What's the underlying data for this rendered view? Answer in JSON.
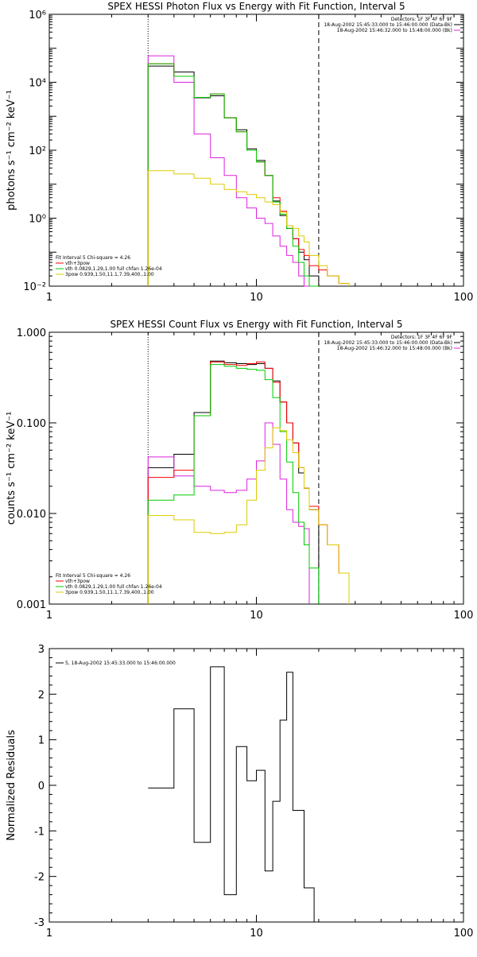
{
  "chart_data": [
    {
      "type": "line",
      "title": "SPEX HESSI Photon Flux vs Energy with Fit Function, Interval 5",
      "xlabel": "",
      "ylabel": "photons s⁻¹ cm⁻² keV⁻¹",
      "xscale": "log",
      "yscale": "log",
      "xlim": [
        1,
        100
      ],
      "ylim": [
        0.01,
        1000000
      ],
      "x_tick_labels": [
        "1",
        "10",
        "100"
      ],
      "y_tick_labels": [
        "10⁻²",
        "10⁰",
        "10²",
        "10⁴",
        "10⁶"
      ],
      "legend_topright": [
        "Detectors: 1F 3F 4F 6F 9F",
        "18-Aug-2002 15:45:33.000 to 15:46:00.000 (Data-Bk)",
        "18-Aug-2002 15:46:32.000 to 15:48:00.000 (Bk)"
      ],
      "legend_bottomleft": [
        "Fit Interval 5   Chi-square = 4.26",
        "vth+3pow",
        "vth 0.0829,1.29,1.00  full chfan 1.26e-04",
        "3pow 0.939,1.50,11.1,7.39,400.,1.00"
      ],
      "markers": [
        {
          "x": 3,
          "style": "dotted"
        },
        {
          "x": 20,
          "style": "dashed"
        }
      ],
      "bin_edges": [
        3,
        4,
        5,
        6,
        7,
        8,
        9,
        10,
        11,
        12,
        13,
        14,
        15,
        16,
        17,
        18,
        20,
        22,
        25,
        28
      ],
      "series": [
        {
          "name": "Data-Bk",
          "color": "#000000",
          "values": [
            30000,
            20000,
            3500,
            4000,
            900,
            400,
            110,
            50,
            18,
            3.2,
            1.2,
            0.5,
            0.25,
            0.1,
            0.06,
            0.02,
            null,
            null,
            null
          ]
        },
        {
          "name": "Bk",
          "color": "#dd22dd",
          "values": [
            60000,
            10000,
            300,
            60,
            18,
            4,
            2,
            1,
            0.7,
            0.3,
            0.15,
            0.08,
            0.05,
            0.02,
            0.01,
            null,
            null,
            null,
            null
          ]
        },
        {
          "name": "vth+3pow",
          "color": "#ff0000",
          "values": [
            35000,
            15000,
            3600,
            4500,
            900,
            350,
            100,
            45,
            18,
            4,
            1.6,
            0.6,
            0.25,
            0.12,
            0.08,
            0.04,
            0.03,
            0.02,
            0.012
          ]
        },
        {
          "name": "vth",
          "color": "#00cc00",
          "values": [
            35000,
            15000,
            3600,
            4500,
            900,
            350,
            100,
            45,
            18,
            3,
            1.3,
            0.5,
            0.15,
            0.05,
            0.02,
            0.01,
            null,
            null,
            null
          ]
        },
        {
          "name": "3pow",
          "color": "#ddcc00",
          "values": [
            25,
            20,
            15,
            10,
            7,
            6,
            5,
            4,
            3,
            2.5,
            1.5,
            0.6,
            0.5,
            0.3,
            0.2,
            0.08,
            0.04,
            0.02,
            0.012
          ]
        }
      ]
    },
    {
      "type": "line",
      "title": "SPEX HESSI Count Flux vs Energy with Fit Function, Interval 5",
      "xlabel": "",
      "ylabel": "counts s⁻¹ cm⁻² keV⁻¹",
      "xscale": "log",
      "yscale": "log",
      "xlim": [
        1,
        100
      ],
      "ylim": [
        0.001,
        1
      ],
      "x_tick_labels": [
        "1",
        "10",
        "100"
      ],
      "y_tick_labels": [
        "0.001",
        "0.010",
        "0.100",
        "1.000"
      ],
      "legend_topright": [
        "Detectors: 1F 3F 4F 6F 9F",
        "18-Aug-2002 15:45:33.000 to 15:46:00.000 (Data-Bk)",
        "18-Aug-2002 15:46:32.000 to 15:48:00.000 (Bk)"
      ],
      "legend_bottomleft": [
        "Fit Interval 5   Chi-square = 4.26",
        "vth+3pow",
        "vth 0.0829,1.29,1.00  full chfan 1.26e-04",
        "3pow 0.939,1.50,11.1,7.39,400.,1.00"
      ],
      "markers": [
        {
          "x": 3,
          "style": "dotted"
        },
        {
          "x": 20,
          "style": "dashed"
        }
      ],
      "bin_edges": [
        3,
        4,
        5,
        6,
        7,
        8,
        9,
        10,
        11,
        12,
        13,
        14,
        15,
        16,
        17,
        18,
        20,
        22,
        25,
        28
      ],
      "series": [
        {
          "name": "Data-Bk",
          "color": "#000000",
          "values": [
            0.032,
            0.045,
            0.13,
            0.48,
            0.46,
            0.45,
            0.44,
            0.45,
            0.4,
            0.29,
            0.17,
            0.1,
            0.06,
            0.028,
            0.019,
            0.011,
            null,
            null,
            null
          ]
        },
        {
          "name": "Bk",
          "color": "#dd22dd",
          "values": [
            0.042,
            0.026,
            0.02,
            0.018,
            0.017,
            0.018,
            0.024,
            0.038,
            0.1,
            0.058,
            0.024,
            0.011,
            0.008,
            0.0072,
            0.0068,
            null,
            null,
            null,
            null
          ]
        },
        {
          "name": "vth+3pow",
          "color": "#ff0000",
          "values": [
            0.025,
            0.03,
            0.12,
            0.47,
            0.44,
            0.43,
            0.45,
            0.47,
            0.4,
            0.28,
            0.17,
            0.1,
            0.06,
            0.032,
            0.019,
            0.012,
            0.0075,
            0.0045,
            0.0022
          ]
        },
        {
          "name": "vth",
          "color": "#00cc00",
          "values": [
            0.014,
            0.016,
            0.12,
            0.44,
            0.42,
            0.4,
            0.39,
            0.38,
            0.3,
            0.19,
            0.08,
            0.037,
            0.017,
            0.008,
            0.0045,
            0.0025,
            null,
            null,
            null
          ]
        },
        {
          "name": "3pow",
          "color": "#ddcc00",
          "values": [
            0.0095,
            0.0085,
            0.0062,
            0.006,
            0.0062,
            0.0075,
            0.014,
            0.03,
            0.053,
            0.088,
            0.082,
            0.065,
            0.047,
            0.032,
            0.019,
            0.011,
            0.0075,
            0.0045,
            0.0022
          ]
        }
      ]
    },
    {
      "type": "line",
      "title": "",
      "xlabel": "",
      "ylabel": "Normalized Residuals",
      "xscale": "log",
      "yscale": "linear",
      "xlim": [
        1,
        100
      ],
      "ylim": [
        -3,
        3
      ],
      "x_tick_labels": [
        "1",
        "10",
        "100"
      ],
      "y_tick_labels": [
        "-3",
        "-2",
        "-1",
        "0",
        "1",
        "2",
        "3"
      ],
      "legend_topleft": [
        "5, 18-Aug-2002 15:45:33.000 to 15:46:00.000"
      ],
      "bin_edges": [
        3,
        3.5,
        4,
        4.5,
        5,
        5.5,
        6,
        6.5,
        7,
        7.5,
        8,
        8.5,
        9,
        9.5,
        10,
        11,
        12,
        13,
        14,
        15,
        16,
        17,
        18,
        19,
        20
      ],
      "series": [
        {
          "name": "",
          "color": "#000000",
          "values": [
            -0.06,
            -0.06,
            1.68,
            1.68,
            -1.25,
            -1.25,
            2.6,
            2.6,
            -2.4,
            -2.4,
            0.85,
            0.85,
            0.1,
            0.1,
            0.33,
            -1.88,
            -0.35,
            1.43,
            2.48,
            -0.55,
            -0.55,
            -2.25,
            -2.25,
            -3.0
          ]
        }
      ]
    }
  ]
}
